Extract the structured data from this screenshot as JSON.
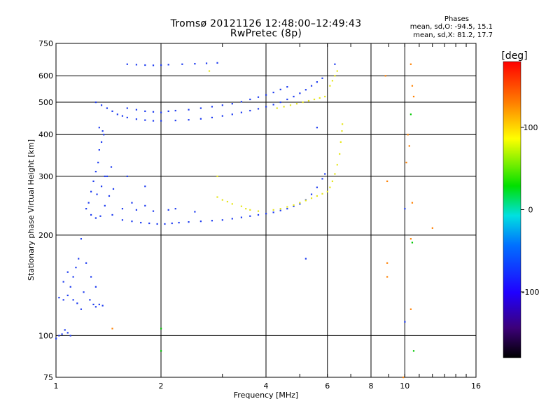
{
  "title": "Tromsø 20121126 12:48:00–12:49:43",
  "subtitle": "RwPretec (8p)",
  "phases": {
    "heading": "Phases",
    "o_line": "mean, sd,O:  -94.5, 15.1",
    "x_line": "mean, sd,X:  81.2, 17.7"
  },
  "colorbar": {
    "unit": "[deg]",
    "ticks": [
      "100",
      "0",
      "-100"
    ],
    "tick_values": [
      100,
      0,
      -100
    ],
    "range": [
      -180,
      180
    ],
    "colormap": "rainbow (black-purple-blue-cyan-green-yellow-red)"
  },
  "chart_data": {
    "type": "scatter",
    "title": "Tromsø 20121126 12:48:00–12:49:43",
    "subtitle": "RwPretec (8p)",
    "xlabel": "Frequency [MHz]",
    "ylabel": "Stationary phase Virtual Height [km]",
    "x_scale": "log",
    "y_scale": "log",
    "xlim": [
      1,
      16
    ],
    "ylim": [
      75,
      750
    ],
    "xticks": [
      1,
      2,
      4,
      6,
      8,
      10,
      16
    ],
    "xtick_labels": [
      "1",
      "2",
      "4",
      "6",
      "8",
      "10",
      "16"
    ],
    "yticks": [
      75,
      100,
      200,
      300,
      400,
      500,
      600,
      750
    ],
    "ytick_labels": [
      "75",
      "100",
      "200",
      "300",
      "400",
      "500",
      "600",
      "750"
    ],
    "grid": true,
    "series": [
      {
        "mode": "O",
        "color": "#1e3cf0",
        "points": [
          [
            1.0,
            98
          ],
          [
            1.02,
            100
          ],
          [
            1.04,
            101
          ],
          [
            1.06,
            104
          ],
          [
            1.08,
            102
          ],
          [
            1.1,
            100
          ],
          [
            1.02,
            130
          ],
          [
            1.05,
            128
          ],
          [
            1.08,
            132
          ],
          [
            1.1,
            140
          ],
          [
            1.12,
            150
          ],
          [
            1.14,
            160
          ],
          [
            1.16,
            170
          ],
          [
            1.18,
            195
          ],
          [
            1.05,
            145
          ],
          [
            1.08,
            155
          ],
          [
            1.12,
            128
          ],
          [
            1.15,
            125
          ],
          [
            1.2,
            135
          ],
          [
            1.25,
            128
          ],
          [
            1.28,
            124
          ],
          [
            1.3,
            122
          ],
          [
            1.33,
            124
          ],
          [
            1.36,
            123
          ],
          [
            1.22,
            165
          ],
          [
            1.26,
            150
          ],
          [
            1.3,
            140
          ],
          [
            1.18,
            120
          ],
          [
            1.22,
            240
          ],
          [
            1.24,
            250
          ],
          [
            1.26,
            270
          ],
          [
            1.28,
            290
          ],
          [
            1.3,
            310
          ],
          [
            1.32,
            330
          ],
          [
            1.33,
            360
          ],
          [
            1.35,
            380
          ],
          [
            1.37,
            400
          ],
          [
            1.26,
            230
          ],
          [
            1.3,
            225
          ],
          [
            1.34,
            228
          ],
          [
            1.38,
            245
          ],
          [
            1.42,
            262
          ],
          [
            1.46,
            275
          ],
          [
            1.4,
            300
          ],
          [
            1.44,
            320
          ],
          [
            1.31,
            265
          ],
          [
            1.35,
            280
          ],
          [
            1.38,
            300
          ],
          [
            1.33,
            420
          ],
          [
            1.36,
            410
          ],
          [
            1.45,
            230
          ],
          [
            1.55,
            222
          ],
          [
            1.65,
            220
          ],
          [
            1.75,
            218
          ],
          [
            1.85,
            217
          ],
          [
            1.95,
            216
          ],
          [
            2.05,
            216
          ],
          [
            2.15,
            217
          ],
          [
            2.25,
            218
          ],
          [
            2.4,
            219
          ],
          [
            2.6,
            220
          ],
          [
            2.8,
            221
          ],
          [
            3.0,
            222
          ],
          [
            3.2,
            224
          ],
          [
            3.4,
            226
          ],
          [
            3.6,
            228
          ],
          [
            3.8,
            230
          ],
          [
            4.0,
            232
          ],
          [
            4.2,
            234
          ],
          [
            4.4,
            237
          ],
          [
            4.6,
            240
          ],
          [
            4.8,
            244
          ],
          [
            5.0,
            248
          ],
          [
            5.2,
            255
          ],
          [
            5.4,
            265
          ],
          [
            5.6,
            278
          ],
          [
            5.8,
            295
          ],
          [
            5.9,
            305
          ],
          [
            1.55,
            240
          ],
          [
            1.7,
            238
          ],
          [
            1.9,
            236
          ],
          [
            2.1,
            238
          ],
          [
            1.65,
            250
          ],
          [
            1.8,
            245
          ],
          [
            2.2,
            240
          ],
          [
            2.5,
            235
          ],
          [
            1.6,
            300
          ],
          [
            1.8,
            280
          ],
          [
            1.3,
            500
          ],
          [
            1.35,
            490
          ],
          [
            1.4,
            480
          ],
          [
            1.45,
            470
          ],
          [
            1.5,
            460
          ],
          [
            1.55,
            455
          ],
          [
            1.6,
            450
          ],
          [
            1.7,
            445
          ],
          [
            1.8,
            442
          ],
          [
            1.9,
            440
          ],
          [
            2.0,
            440
          ],
          [
            2.2,
            441
          ],
          [
            2.4,
            443
          ],
          [
            2.6,
            446
          ],
          [
            2.8,
            450
          ],
          [
            3.0,
            455
          ],
          [
            3.2,
            460
          ],
          [
            3.4,
            466
          ],
          [
            3.6,
            472
          ],
          [
            3.8,
            478
          ],
          [
            4.0,
            485
          ],
          [
            4.2,
            492
          ],
          [
            4.4,
            500
          ],
          [
            4.6,
            510
          ],
          [
            4.8,
            520
          ],
          [
            5.0,
            532
          ],
          [
            5.2,
            545
          ],
          [
            5.4,
            560
          ],
          [
            5.6,
            575
          ],
          [
            5.8,
            590
          ],
          [
            1.6,
            480
          ],
          [
            1.7,
            475
          ],
          [
            1.8,
            470
          ],
          [
            1.9,
            468
          ],
          [
            2.0,
            466
          ],
          [
            2.1,
            470
          ],
          [
            2.2,
            472
          ],
          [
            2.4,
            475
          ],
          [
            2.6,
            480
          ],
          [
            2.8,
            485
          ],
          [
            3.0,
            490
          ],
          [
            3.2,
            495
          ],
          [
            3.4,
            502
          ],
          [
            3.6,
            510
          ],
          [
            3.8,
            518
          ],
          [
            4.0,
            526
          ],
          [
            4.2,
            535
          ],
          [
            4.4,
            546
          ],
          [
            4.6,
            556
          ],
          [
            1.6,
            650
          ],
          [
            1.7,
            648
          ],
          [
            1.8,
            646
          ],
          [
            1.9,
            645
          ],
          [
            2.0,
            646
          ],
          [
            2.1,
            648
          ],
          [
            2.3,
            650
          ],
          [
            2.5,
            652
          ],
          [
            2.7,
            654
          ],
          [
            2.9,
            656
          ],
          [
            5.2,
            170
          ],
          [
            5.6,
            420
          ],
          [
            6.3,
            650
          ],
          [
            10.0,
            240
          ],
          [
            10.0,
            110
          ]
        ]
      },
      {
        "mode": "X",
        "color": "#e6e61e",
        "points": [
          [
            3.0,
            255
          ],
          [
            3.1,
            252
          ],
          [
            3.2,
            248
          ],
          [
            3.4,
            244
          ],
          [
            3.5,
            240
          ],
          [
            3.6,
            238
          ],
          [
            3.8,
            236
          ],
          [
            4.2,
            238
          ],
          [
            4.4,
            240
          ],
          [
            4.6,
            243
          ],
          [
            4.8,
            246
          ],
          [
            5.0,
            250
          ],
          [
            5.2,
            254
          ],
          [
            5.4,
            258
          ],
          [
            5.6,
            262
          ],
          [
            5.8,
            266
          ],
          [
            6.0,
            270
          ],
          [
            6.1,
            278
          ],
          [
            6.2,
            290
          ],
          [
            6.3,
            305
          ],
          [
            6.4,
            325
          ],
          [
            6.5,
            350
          ],
          [
            6.55,
            380
          ],
          [
            6.6,
            410
          ],
          [
            6.62,
            430
          ],
          [
            4.3,
            480
          ],
          [
            4.5,
            485
          ],
          [
            4.7,
            490
          ],
          [
            4.9,
            495
          ],
          [
            5.1,
            500
          ],
          [
            5.3,
            505
          ],
          [
            5.5,
            510
          ],
          [
            5.7,
            515
          ],
          [
            5.9,
            520
          ],
          [
            6.1,
            560
          ],
          [
            6.2,
            580
          ],
          [
            6.3,
            600
          ],
          [
            6.4,
            620
          ],
          [
            2.9,
            300
          ],
          [
            2.75,
            620
          ],
          [
            2.9,
            260
          ]
        ]
      },
      {
        "mode": "scattered",
        "color": "#ff8000",
        "points": [
          [
            8.8,
            600
          ],
          [
            10.4,
            650
          ],
          [
            10.5,
            560
          ],
          [
            10.6,
            520
          ],
          [
            10.2,
            400
          ],
          [
            10.3,
            370
          ],
          [
            10.1,
            330
          ],
          [
            8.9,
            290
          ],
          [
            10.5,
            250
          ],
          [
            10.4,
            195
          ],
          [
            8.9,
            165
          ],
          [
            10.4,
            120
          ],
          [
            8.9,
            150
          ],
          [
            12.0,
            210
          ],
          [
            1.45,
            105
          ],
          [
            9.9,
            75
          ]
        ]
      },
      {
        "mode": "scattered",
        "color": "#00c800",
        "points": [
          [
            2.0,
            105
          ],
          [
            2.0,
            90
          ],
          [
            10.5,
            190
          ],
          [
            10.6,
            90
          ],
          [
            10.4,
            460
          ]
        ]
      }
    ]
  }
}
